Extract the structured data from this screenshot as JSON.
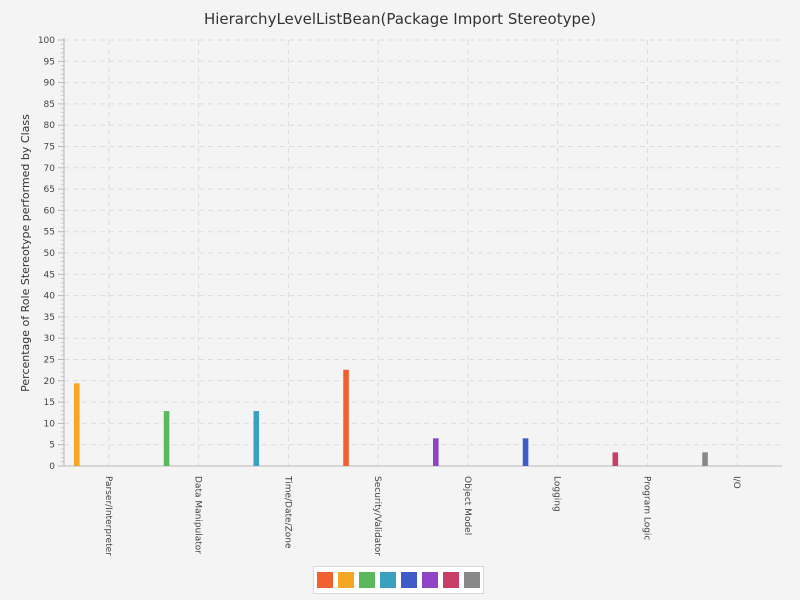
{
  "chart_data": {
    "type": "bar",
    "title": "HierarchyLevelListBean(Package Import Stereotype)",
    "xlabel": "",
    "ylabel": "Percentage of Role Stereotype performed by Class",
    "ylim": [
      0,
      100
    ],
    "ytick_step": 5,
    "grid": true,
    "legend_placement": "bottom",
    "categories": [
      "Parser/Interpreter",
      "Data Manipulator",
      "Time/Date/Zone",
      "Security/Validator",
      "Object Model",
      "Logging",
      "Program Logic",
      "I/O"
    ],
    "series": [
      {
        "color": "#f06030",
        "values": [
          0,
          0,
          0,
          22.6,
          0,
          0,
          0,
          0
        ]
      },
      {
        "color": "#f5a623",
        "values": [
          19.4,
          0,
          0,
          0,
          0,
          0,
          0,
          0
        ]
      },
      {
        "color": "#5cb85c",
        "values": [
          0,
          12.9,
          0,
          0,
          0,
          0,
          0,
          0
        ]
      },
      {
        "color": "#3aa0c0",
        "values": [
          0,
          0,
          12.9,
          0,
          0,
          0,
          0,
          0
        ]
      },
      {
        "color": "#3f5bc8",
        "values": [
          0,
          0,
          0,
          0,
          0,
          6.5,
          0,
          0
        ]
      },
      {
        "color": "#8e44c4",
        "values": [
          0,
          0,
          0,
          0,
          6.5,
          0,
          0,
          0
        ]
      },
      {
        "color": "#c84068",
        "values": [
          0,
          0,
          0,
          0,
          0,
          0,
          3.2,
          0
        ]
      },
      {
        "color": "#888888",
        "values": [
          0,
          0,
          0,
          0,
          0,
          0,
          0,
          3.2
        ]
      }
    ]
  }
}
